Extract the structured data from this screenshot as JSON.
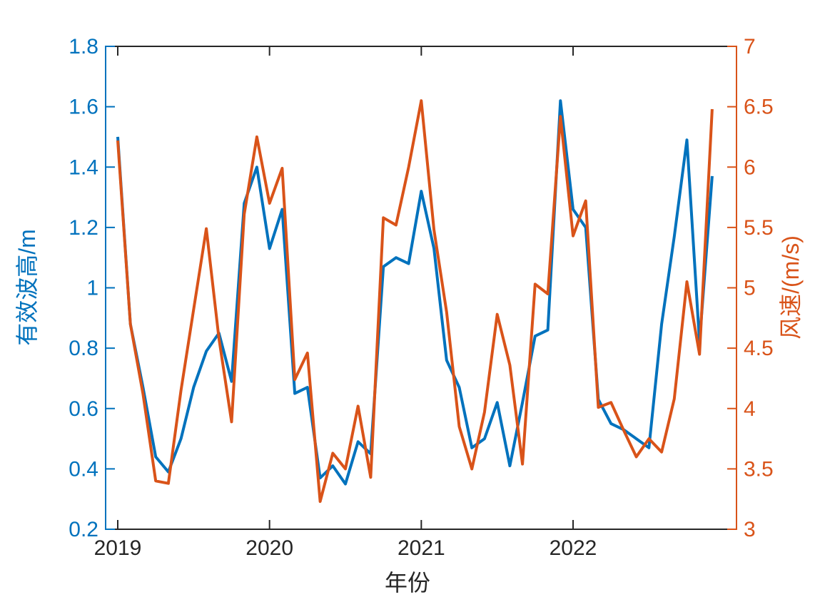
{
  "figure": {
    "xlabel": "年份",
    "background_color": "#ffffff",
    "left_axis": {
      "label": "有效波高/m",
      "color": "#0072BD",
      "tick_labels": [
        "0.2",
        "0.4",
        "0.6",
        "0.8",
        "1",
        "1.2",
        "1.4",
        "1.6",
        "1.8"
      ],
      "tick_values": [
        0.2,
        0.4,
        0.6,
        0.8,
        1.0,
        1.2,
        1.4,
        1.6,
        1.8
      ]
    },
    "right_axis": {
      "label": "风速/(m/s)",
      "color": "#D95319",
      "tick_labels": [
        "3",
        "3.5",
        "4",
        "4.5",
        "5",
        "5.5",
        "6",
        "6.5",
        "7"
      ],
      "tick_values": [
        3,
        3.5,
        4,
        4.5,
        5,
        5.5,
        6,
        6.5,
        7
      ]
    },
    "x_axis": {
      "color": "#262626",
      "tick_labels": [
        "2019",
        "2020",
        "2021",
        "2022"
      ],
      "tick_month_indices": [
        0,
        12,
        24,
        36
      ]
    }
  },
  "chart_data": {
    "type": "line",
    "title": "",
    "xlabel": "年份",
    "x": [
      "2019-01",
      "2019-02",
      "2019-03",
      "2019-04",
      "2019-05",
      "2019-06",
      "2019-07",
      "2019-08",
      "2019-09",
      "2019-10",
      "2019-11",
      "2019-12",
      "2020-01",
      "2020-02",
      "2020-03",
      "2020-04",
      "2020-05",
      "2020-06",
      "2020-07",
      "2020-08",
      "2020-09",
      "2020-10",
      "2020-11",
      "2020-12",
      "2021-01",
      "2021-02",
      "2021-03",
      "2021-04",
      "2021-05",
      "2021-06",
      "2021-07",
      "2021-08",
      "2021-09",
      "2021-10",
      "2021-11",
      "2021-12",
      "2022-01",
      "2022-02",
      "2022-03",
      "2022-04",
      "2022-05",
      "2022-06",
      "2022-07",
      "2022-08",
      "2022-09",
      "2022-10",
      "2022-11",
      "2022-12"
    ],
    "x_tick_labels": [
      "2019",
      "2020",
      "2021",
      "2022"
    ],
    "grid": false,
    "legend": "none",
    "left_ylim": [
      0.2,
      1.8
    ],
    "right_ylim": [
      3,
      7
    ],
    "series": [
      {
        "name": "有效波高",
        "axis": "left",
        "ylabel": "有效波高/m",
        "unit": "m",
        "color": "#0072BD",
        "values": [
          1.5,
          0.88,
          0.67,
          0.44,
          0.39,
          0.5,
          0.67,
          0.79,
          0.85,
          0.69,
          1.28,
          1.4,
          1.13,
          1.26,
          0.65,
          0.67,
          0.37,
          0.41,
          0.35,
          0.49,
          0.45,
          1.07,
          1.1,
          1.08,
          1.32,
          1.13,
          0.76,
          0.67,
          0.47,
          0.5,
          0.62,
          0.41,
          0.62,
          0.84,
          0.86,
          1.62,
          1.26,
          1.2,
          0.63,
          0.55,
          0.53,
          0.5,
          0.47,
          0.88,
          1.17,
          1.49,
          0.82,
          1.37
        ]
      },
      {
        "name": "风速",
        "axis": "right",
        "ylabel": "风速/(m/s)",
        "unit": "m/s",
        "color": "#D95319",
        "values": [
          6.22,
          4.7,
          4.12,
          3.4,
          3.38,
          4.15,
          4.82,
          5.49,
          4.58,
          3.89,
          5.61,
          6.25,
          5.7,
          5.99,
          4.24,
          4.46,
          3.23,
          3.63,
          3.5,
          4.02,
          3.43,
          5.58,
          5.52,
          6.0,
          6.55,
          5.48,
          4.8,
          3.85,
          3.5,
          3.97,
          4.78,
          4.36,
          3.54,
          5.03,
          4.95,
          6.42,
          5.43,
          5.72,
          4.01,
          4.05,
          3.82,
          3.6,
          3.75,
          3.64,
          4.08,
          5.05,
          4.45,
          6.48
        ]
      }
    ]
  }
}
